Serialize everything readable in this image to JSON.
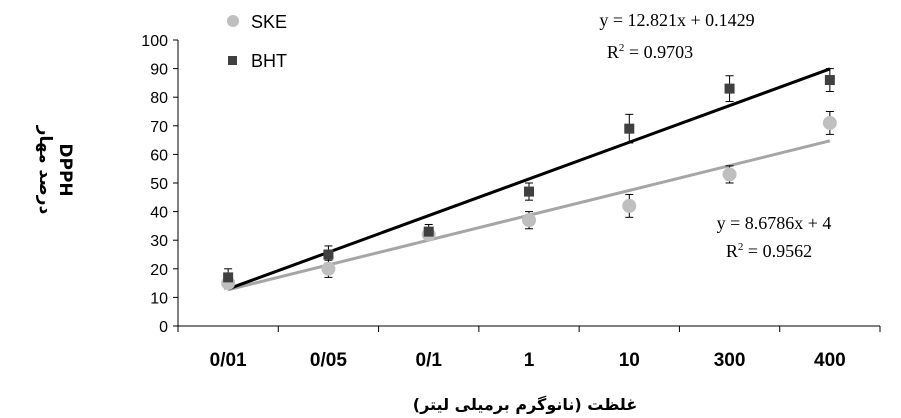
{
  "chart_data": {
    "type": "scatter",
    "categories": [
      "0/01",
      "0/05",
      "0/1",
      "1",
      "10",
      "300",
      "400"
    ],
    "xlabel": "غلظت (نانوگرم برمیلی لیتر)",
    "ylabel_line1": "درصد مهار",
    "ylabel_line2": "DPPH",
    "ylim": [
      0,
      100
    ],
    "yticks": [
      0,
      10,
      20,
      30,
      40,
      50,
      60,
      70,
      80,
      90,
      100
    ],
    "grid": false,
    "legend_placement": "top-left",
    "series": [
      {
        "name": "SKE",
        "marker": "circle",
        "color": "#bfbfbf",
        "line_color": "#a6a6a6",
        "values": [
          15,
          20,
          32,
          37,
          42,
          53,
          71
        ],
        "errors": [
          2,
          3,
          1.5,
          3,
          4,
          3,
          4
        ],
        "trendline": {
          "slope": 8.6786,
          "intercept": 4,
          "equation": "y = 8.6786x  + 4",
          "r2_prefix": "R",
          "r2_suffix": " = 0.9562"
        }
      },
      {
        "name": "BHT",
        "marker": "square",
        "color": "#404040",
        "line_color": "#000000",
        "values": [
          17,
          25,
          33,
          47,
          69,
          83,
          86
        ],
        "errors": [
          3,
          3,
          2.5,
          3,
          5,
          4.5,
          4
        ],
        "trendline": {
          "slope": 12.821,
          "intercept": 0.1429,
          "equation": "y = 12.821x + 0.1429",
          "r2_prefix": "R",
          "r2_suffix": " = 0.9703"
        }
      }
    ]
  }
}
